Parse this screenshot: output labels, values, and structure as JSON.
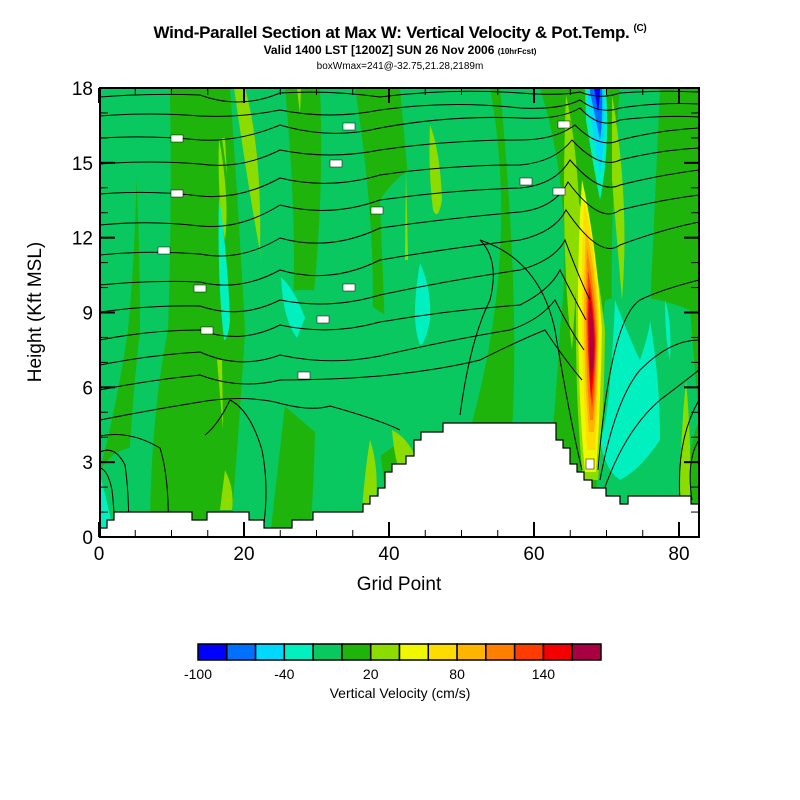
{
  "header": {
    "title": "Wind-Parallel Section at Max W: Vertical Velocity & Pot.Temp.",
    "copyright": "(C)",
    "subtitle": "Valid 1400 LST [1200Z] SUN 26 Nov 2006",
    "forecast": "(10hrFcst)",
    "info": "boxWmax=241@-32.75,21.28,2189m"
  },
  "chart_data": {
    "type": "heatmap",
    "title": "Wind-Parallel Section at Max W: Vertical Velocity & Pot.Temp.",
    "xlabel": "Grid Point",
    "ylabel": "Height (Kft MSL)",
    "xlim": [
      0,
      83
    ],
    "ylim": [
      0,
      18
    ],
    "xticks": [
      0,
      20,
      40,
      60,
      80
    ],
    "yticks": [
      0,
      3,
      6,
      9,
      12,
      15,
      18
    ],
    "colorbar": {
      "title": "Vertical Velocity (cm/s)",
      "levels": [
        -100,
        -80,
        -60,
        -40,
        -20,
        0,
        20,
        40,
        60,
        80,
        100,
        120,
        140,
        160,
        180
      ],
      "tick_labels": [
        "-100",
        "-40",
        "20",
        "80",
        "140"
      ],
      "tick_values": [
        -100,
        -40,
        20,
        80,
        140
      ],
      "colors": [
        "#0000ff",
        "#0070ff",
        "#00d8ff",
        "#00f0c0",
        "#0ac860",
        "#1eb40c",
        "#8cdc00",
        "#f0f800",
        "#ffdc00",
        "#ffb400",
        "#ff8000",
        "#ff3c00",
        "#f50000",
        "#a80040"
      ]
    },
    "features": {
      "max_updraft_cm_s": 241,
      "updraft_grid_point": 68,
      "downdraft_grid_point": 69,
      "terrain_profile_kft": [
        [
          0,
          0.4
        ],
        [
          1,
          0.7
        ],
        [
          2,
          1.0
        ],
        [
          13,
          1.0
        ],
        [
          15,
          0.7
        ],
        [
          21,
          0.7
        ],
        [
          23,
          0.4
        ],
        [
          27,
          0.4
        ],
        [
          30,
          0.7
        ],
        [
          36,
          1.0
        ],
        [
          38,
          1.7
        ],
        [
          40,
          2.3
        ],
        [
          42,
          2.7
        ],
        [
          44,
          3.7
        ],
        [
          45,
          4.0
        ],
        [
          48,
          4.5
        ],
        [
          63,
          4.5
        ],
        [
          65,
          4.0
        ],
        [
          66,
          3.4
        ],
        [
          67,
          2.7
        ],
        [
          68,
          2.3
        ],
        [
          69,
          1.7
        ],
        [
          71,
          1.4
        ],
        [
          73,
          1.3
        ],
        [
          75,
          1.3
        ],
        [
          74,
          1.6
        ],
        [
          82,
          1.6
        ],
        [
          83,
          1.3
        ]
      ]
    }
  }
}
